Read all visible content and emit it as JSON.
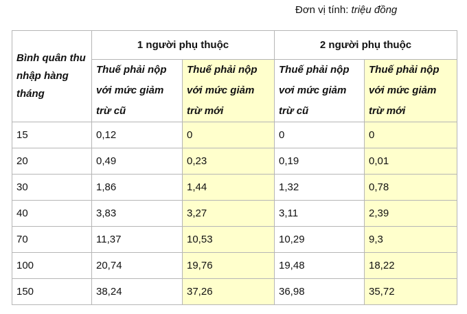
{
  "unit": {
    "label": "Đơn vị tính:",
    "value": "triệu đồng"
  },
  "table": {
    "row_header": "Bình quân thu nhập hàng tháng",
    "groups": [
      "1 người phụ thuộc",
      "2 người phụ thuộc"
    ],
    "subheaders": [
      "Thuế phải nộp với mức giảm trừ cũ",
      "Thuế phải nộp với mức giảm trừ mới",
      "Thuế phải nộp vơi mức giảm trừ cũ",
      "Thuế phải nộp với mức giảm trừ mới"
    ],
    "rows": [
      [
        "15",
        "0,12",
        "0",
        "0",
        "0"
      ],
      [
        "20",
        "0,49",
        "0,23",
        "0,19",
        "0,01"
      ],
      [
        "30",
        "1,86",
        "1,44",
        "1,32",
        "0,78"
      ],
      [
        "40",
        "3,83",
        "3,27",
        "3,11",
        "2,39"
      ],
      [
        "70",
        "11,37",
        "10,53",
        "10,29",
        "9,3"
      ],
      [
        "100",
        "20,74",
        "19,76",
        "19,48",
        "18,22"
      ],
      [
        "150",
        "38,24",
        "37,26",
        "36,98",
        "35,72"
      ]
    ]
  }
}
